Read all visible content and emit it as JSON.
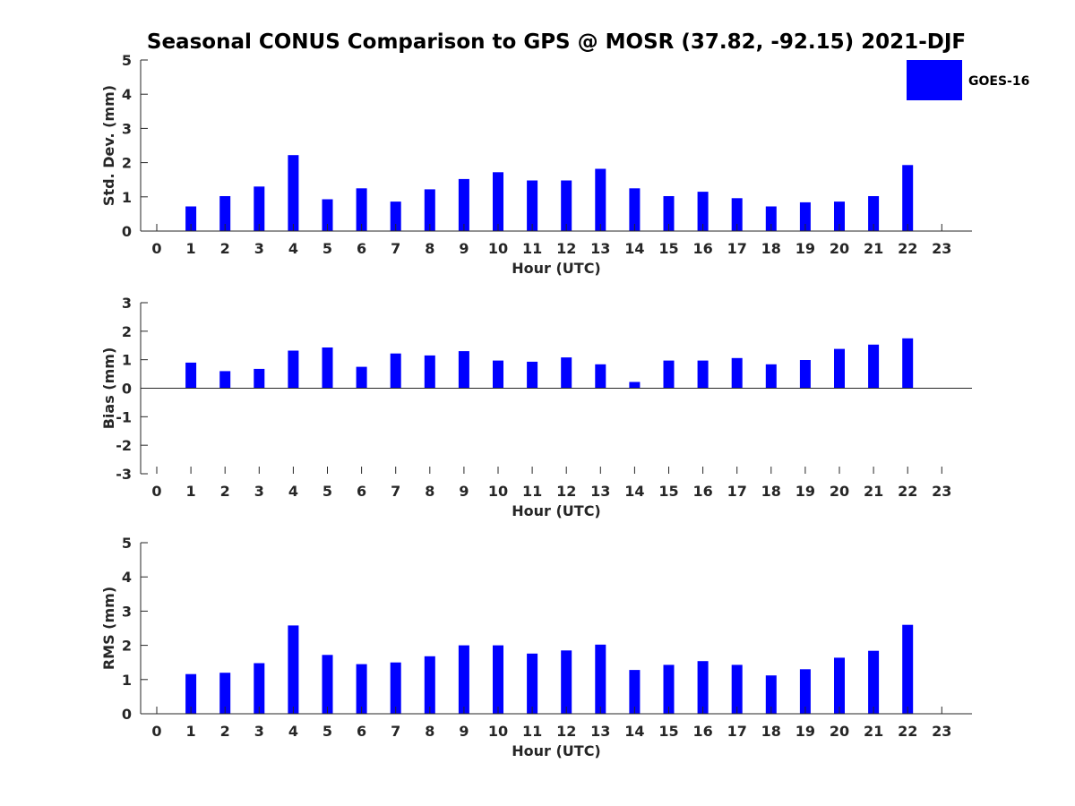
{
  "title": "Seasonal CONUS Comparison to GPS @ MOSR (37.82, -92.15) 2021-DJF",
  "legend": {
    "label": "GOES-16",
    "color": "#0000ff"
  },
  "colors": {
    "bar": "#0000ff",
    "axis": "#262626"
  },
  "chart_data": [
    {
      "type": "bar",
      "categories": [
        "0",
        "1",
        "2",
        "3",
        "4",
        "5",
        "6",
        "7",
        "8",
        "9",
        "10",
        "11",
        "12",
        "13",
        "14",
        "15",
        "16",
        "17",
        "18",
        "19",
        "20",
        "21",
        "22",
        "23"
      ],
      "series": [
        {
          "name": "GOES-16",
          "values": [
            null,
            0.72,
            1.02,
            1.3,
            2.22,
            0.93,
            1.25,
            0.86,
            1.22,
            1.52,
            1.72,
            1.48,
            1.48,
            1.82,
            1.25,
            1.02,
            1.15,
            0.96,
            0.72,
            0.84,
            0.86,
            1.02,
            1.93,
            null
          ]
        }
      ],
      "xlabel": "Hour (UTC)",
      "ylabel": "Std. Dev. (mm)",
      "ylim": [
        0,
        5
      ],
      "yticks": [
        "0",
        "1",
        "2",
        "3",
        "4",
        "5"
      ],
      "grid": false,
      "legend_position": "top-right"
    },
    {
      "type": "bar",
      "categories": [
        "0",
        "1",
        "2",
        "3",
        "4",
        "5",
        "6",
        "7",
        "8",
        "9",
        "10",
        "11",
        "12",
        "13",
        "14",
        "15",
        "16",
        "17",
        "18",
        "19",
        "20",
        "21",
        "22",
        "23"
      ],
      "series": [
        {
          "name": "GOES-16",
          "values": [
            null,
            0.9,
            0.6,
            0.68,
            1.32,
            1.43,
            0.75,
            1.22,
            1.15,
            1.3,
            0.97,
            0.93,
            1.08,
            0.84,
            0.22,
            0.97,
            0.97,
            1.06,
            0.84,
            0.99,
            1.38,
            1.53,
            1.75,
            null
          ]
        }
      ],
      "xlabel": "Hour (UTC)",
      "ylabel": "Bias (mm)",
      "ylim": [
        -3,
        3
      ],
      "yticks": [
        "-3",
        "-2",
        "-1",
        "0",
        "1",
        "2",
        "3"
      ],
      "grid": false
    },
    {
      "type": "bar",
      "categories": [
        "0",
        "1",
        "2",
        "3",
        "4",
        "5",
        "6",
        "7",
        "8",
        "9",
        "10",
        "11",
        "12",
        "13",
        "14",
        "15",
        "16",
        "17",
        "18",
        "19",
        "20",
        "21",
        "22",
        "23"
      ],
      "series": [
        {
          "name": "GOES-16",
          "values": [
            null,
            1.16,
            1.2,
            1.48,
            2.58,
            1.72,
            1.45,
            1.5,
            1.68,
            2.0,
            2.0,
            1.76,
            1.85,
            2.02,
            1.28,
            1.43,
            1.54,
            1.43,
            1.12,
            1.3,
            1.64,
            1.84,
            2.6,
            null
          ]
        }
      ],
      "xlabel": "Hour (UTC)",
      "ylabel": "RMS (mm)",
      "ylim": [
        0,
        5
      ],
      "yticks": [
        "0",
        "1",
        "2",
        "3",
        "4",
        "5"
      ],
      "grid": false
    }
  ]
}
